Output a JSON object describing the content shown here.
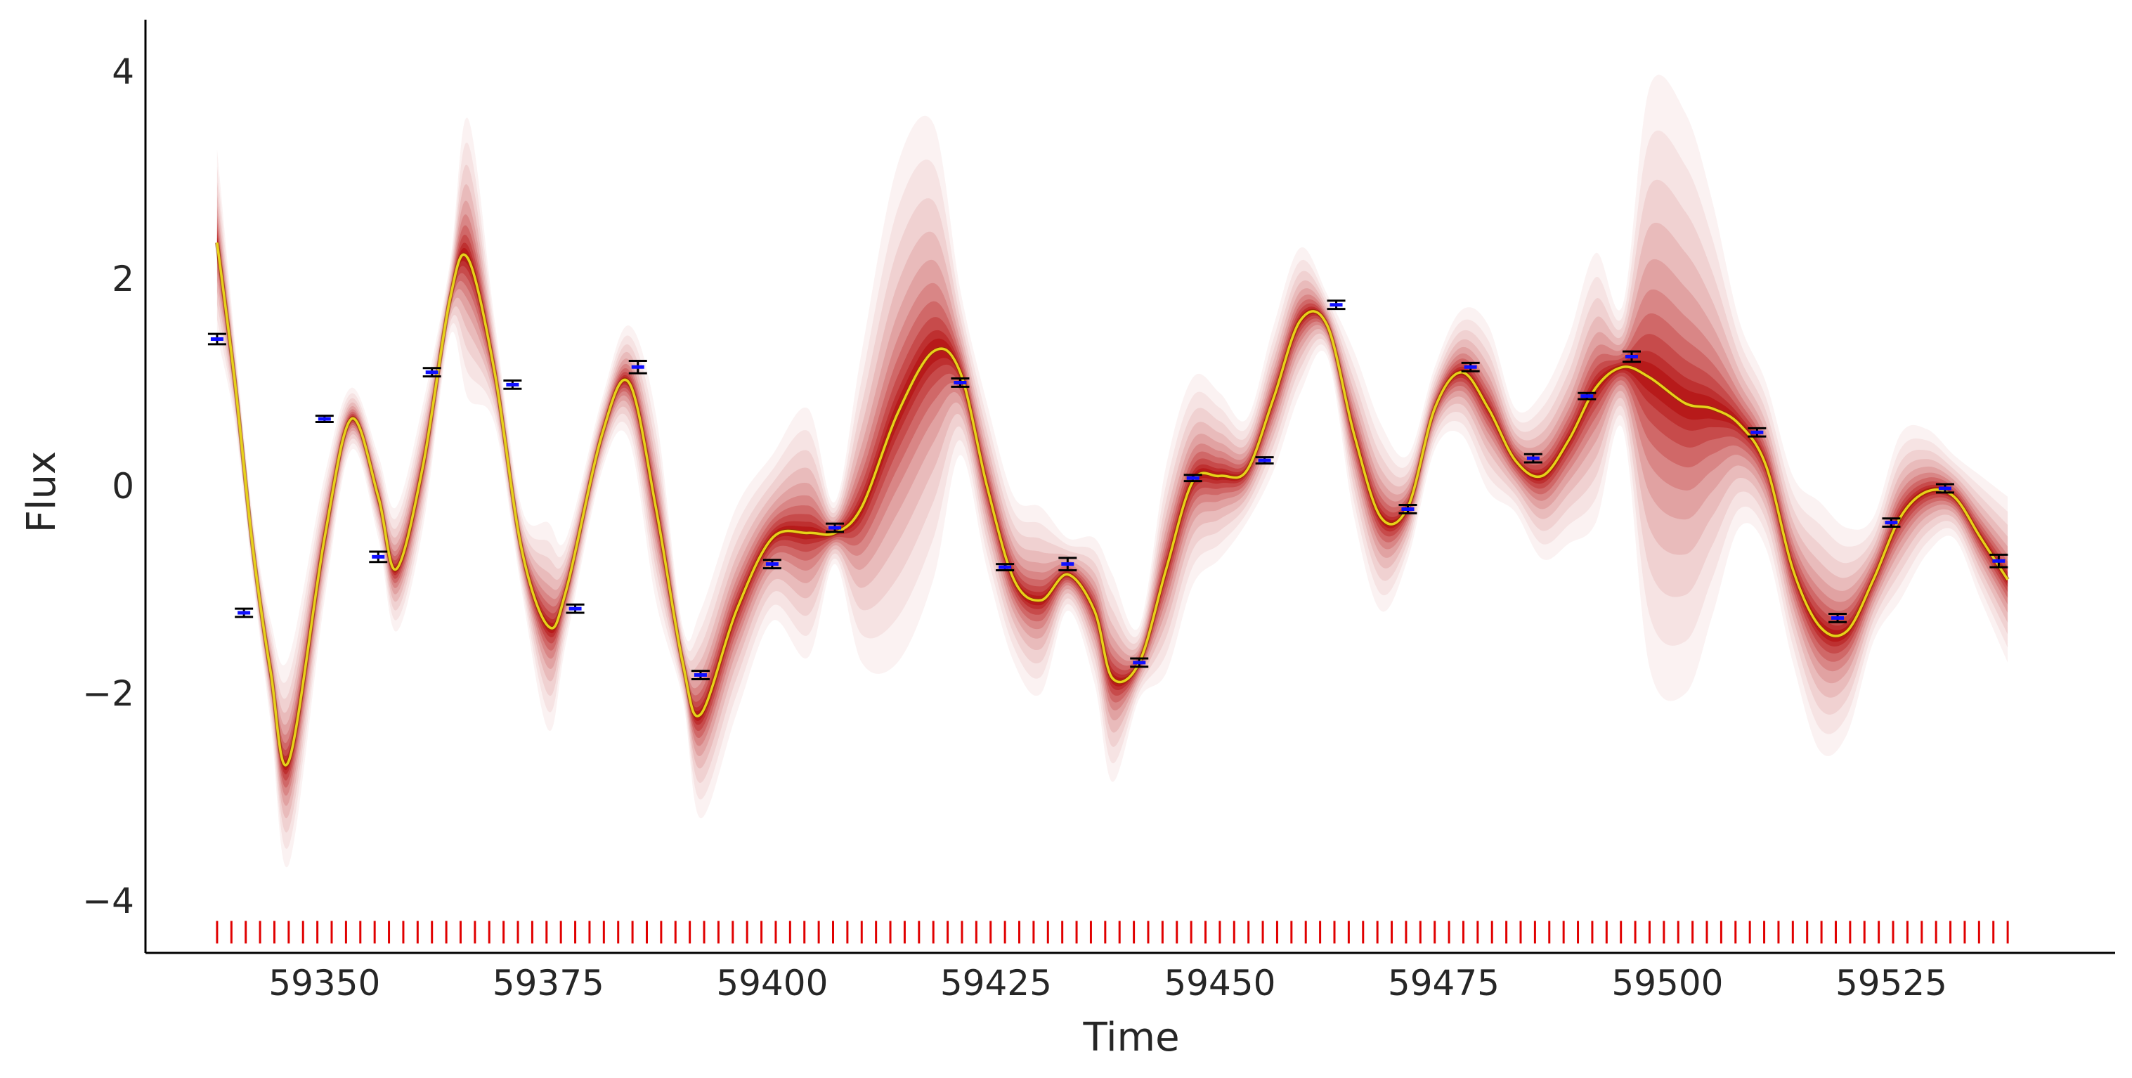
{
  "chart_data": {
    "type": "line",
    "title": "",
    "xlabel": "Time",
    "ylabel": "Flux",
    "xlim": [
      59330,
      59550
    ],
    "ylim": [
      -4.5,
      4.5
    ],
    "x_ticks": [
      59350,
      59375,
      59400,
      59425,
      59450,
      59475,
      59500,
      59525
    ],
    "y_ticks": [
      -4,
      -2,
      0,
      2,
      4
    ],
    "x_tick_labels": [
      "59350",
      "59375",
      "59400",
      "59425",
      "59450",
      "59475",
      "59500",
      "59525"
    ],
    "y_tick_labels": [
      "−4",
      "−2",
      "0",
      "2",
      "4"
    ],
    "grid": false,
    "legend": "none",
    "colors": {
      "band": "#b00000",
      "mean_line": "#e6d21a",
      "mean_line_edge": "#8a3a00",
      "observations": "#1010ff",
      "errorbars": "#000000",
      "rug": "#e00000"
    },
    "series": [
      {
        "kind": "posterior_mean_with_band",
        "x": [
          59338,
          59340,
          59342,
          59344,
          59346,
          59350,
          59353,
          59356,
          59358,
          59361,
          59364,
          59366,
          59369,
          59372,
          59375,
          59377,
          59381,
          59384,
          59387,
          59390,
          59392,
          59396,
          59400,
          59404,
          59407,
          59410,
          59414,
          59418,
          59421,
          59424,
          59427,
          59430,
          59433,
          59436,
          59438,
          59441,
          59444,
          59447,
          59450,
          59453,
          59456,
          59459,
          59462,
          59465,
          59468,
          59471,
          59474,
          59477,
          59480,
          59483,
          59486,
          59489,
          59492,
          59495,
          59498,
          59502,
          59505,
          59508,
          59511,
          59514,
          59517,
          59520,
          59523,
          59526,
          59529,
          59532,
          59535,
          59538
        ],
        "mean": [
          2.35,
          1.0,
          -0.6,
          -1.8,
          -2.65,
          -0.5,
          0.65,
          -0.1,
          -0.8,
          0.2,
          1.8,
          2.2,
          1.1,
          -0.6,
          -1.35,
          -1.0,
          0.5,
          1.0,
          -0.2,
          -1.7,
          -2.2,
          -1.2,
          -0.5,
          -0.45,
          -0.45,
          -0.2,
          0.7,
          1.3,
          1.1,
          0.0,
          -0.9,
          -1.1,
          -0.85,
          -1.2,
          -1.85,
          -1.7,
          -0.8,
          0.05,
          0.1,
          0.15,
          0.85,
          1.6,
          1.55,
          0.5,
          -0.3,
          -0.2,
          0.75,
          1.1,
          0.75,
          0.25,
          0.1,
          0.45,
          0.95,
          1.15,
          1.05,
          0.8,
          0.75,
          0.6,
          0.2,
          -0.8,
          -1.35,
          -1.4,
          -0.9,
          -0.3,
          -0.05,
          -0.1,
          -0.5,
          -0.9
        ],
        "spread": [
          0.9,
          0.4,
          0.3,
          0.5,
          1.0,
          0.6,
          0.3,
          0.4,
          0.6,
          0.6,
          0.35,
          1.35,
          0.5,
          0.4,
          1.0,
          0.5,
          0.35,
          0.55,
          0.9,
          0.35,
          1.0,
          1.0,
          0.8,
          1.2,
          0.3,
          1.5,
          2.4,
          2.2,
          0.8,
          0.8,
          0.8,
          0.9,
          0.35,
          0.7,
          1.0,
          0.35,
          1.0,
          1.0,
          0.8,
          0.5,
          0.7,
          0.7,
          0.3,
          0.8,
          0.9,
          0.5,
          0.4,
          0.6,
          0.8,
          0.5,
          0.8,
          1.0,
          1.3,
          0.6,
          2.8,
          2.8,
          2.0,
          1.0,
          0.8,
          0.9,
          1.2,
          1.0,
          0.6,
          0.8,
          0.6,
          0.4,
          0.6,
          0.8
        ]
      },
      {
        "kind": "observations",
        "x": [
          59338,
          59341,
          59350,
          59356,
          59362,
          59371,
          59378,
          59385,
          59392,
          59400,
          59407,
          59421,
          59426,
          59433,
          59441,
          59447,
          59455,
          59463,
          59471,
          59478,
          59485,
          59491,
          59496,
          59510,
          59519,
          59525,
          59531,
          59537
        ],
        "y": [
          1.42,
          -1.22,
          0.65,
          -0.68,
          1.1,
          0.98,
          -1.18,
          1.15,
          -1.82,
          -0.75,
          -0.4,
          1.0,
          -0.78,
          -0.75,
          -1.7,
          0.08,
          0.25,
          1.75,
          -0.22,
          1.15,
          0.27,
          0.87,
          1.25,
          0.52,
          -1.27,
          -0.35,
          -0.02,
          -0.72
        ],
        "yerr": [
          0.05,
          0.04,
          0.03,
          0.05,
          0.04,
          0.04,
          0.04,
          0.06,
          0.04,
          0.04,
          0.04,
          0.04,
          0.03,
          0.06,
          0.04,
          0.03,
          0.03,
          0.04,
          0.04,
          0.04,
          0.04,
          0.03,
          0.05,
          0.04,
          0.04,
          0.04,
          0.04,
          0.06
        ]
      }
    ],
    "rug": {
      "start": 59338,
      "end": 59538,
      "step": 1.6,
      "y": -4.3
    }
  }
}
